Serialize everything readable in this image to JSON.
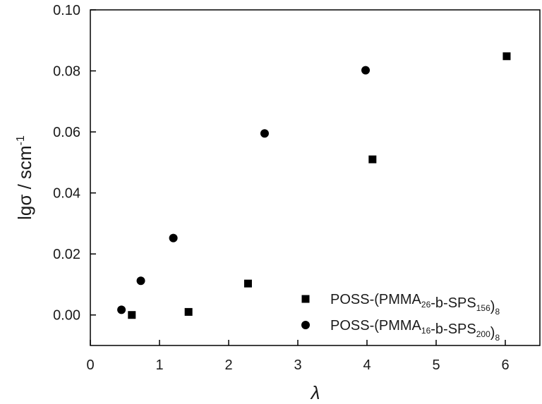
{
  "chart_data": {
    "type": "scatter",
    "title": "",
    "xlabel": "λ",
    "ylabel": "lgσ / scm",
    "ylabel_sup": "-1",
    "xlim": [
      0,
      6.5
    ],
    "ylim": [
      -0.01,
      0.1
    ],
    "x_ticks": [
      "0",
      "1",
      "2",
      "3",
      "4",
      "5",
      "6"
    ],
    "x_tick_values": [
      0,
      1,
      2,
      3,
      4,
      5,
      6
    ],
    "y_ticks": [
      "0.00",
      "0.02",
      "0.04",
      "0.06",
      "0.08",
      "0.10"
    ],
    "y_tick_values": [
      0.0,
      0.02,
      0.04,
      0.06,
      0.08,
      0.1
    ],
    "grid": false,
    "legend_position": "bottom-right",
    "series": [
      {
        "name": "POSS-(PMMA26-b-SPS156)8",
        "legend_parts": [
          {
            "text": "POSS-(PMMA",
            "sub": false
          },
          {
            "text": "26",
            "sub": true
          },
          {
            "text": "-b-SPS",
            "sub": false
          },
          {
            "text": "156",
            "sub": true
          },
          {
            "text": ")",
            "sub": false
          },
          {
            "text": "8",
            "sub": true
          }
        ],
        "marker": "square",
        "color": "#000000",
        "points": [
          {
            "x": 0.6,
            "y": 0.0
          },
          {
            "x": 1.42,
            "y": 0.001
          },
          {
            "x": 2.28,
            "y": 0.0103
          },
          {
            "x": 4.08,
            "y": 0.051
          },
          {
            "x": 6.02,
            "y": 0.0848
          }
        ]
      },
      {
        "name": "POSS-(PMMA16-b-SPS200)8",
        "legend_parts": [
          {
            "text": "POSS-(PMMA",
            "sub": false
          },
          {
            "text": "16",
            "sub": true
          },
          {
            "text": "-b-SPS",
            "sub": false
          },
          {
            "text": "200",
            "sub": true
          },
          {
            "text": ")",
            "sub": false
          },
          {
            "text": "8",
            "sub": true
          }
        ],
        "marker": "circle",
        "color": "#000000",
        "points": [
          {
            "x": 0.45,
            "y": 0.0017
          },
          {
            "x": 0.73,
            "y": 0.0112
          },
          {
            "x": 1.2,
            "y": 0.0252
          },
          {
            "x": 2.52,
            "y": 0.0595
          },
          {
            "x": 3.98,
            "y": 0.0802
          }
        ]
      }
    ]
  }
}
